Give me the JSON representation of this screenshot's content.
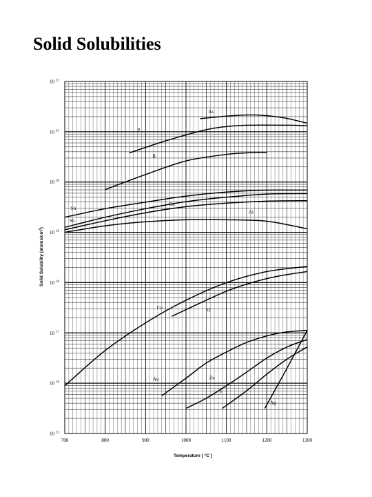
{
  "page": {
    "title": "Solid Solubilities"
  },
  "chart_data": {
    "type": "line",
    "xlabel": "Temperature [ °C ]",
    "ylabel": "Solid Solubility (atoms/cm^3)",
    "xlim": [
      700,
      1300
    ],
    "ylim": [
      15,
      22
    ],
    "y_scale": "log",
    "grid": true,
    "x_ticks": [
      "700",
      "800",
      "900",
      "1000",
      "1100",
      "1200",
      "1300"
    ],
    "y_ticks": [
      {
        "base": "10",
        "exp": "15"
      },
      {
        "base": "10",
        "exp": "16"
      },
      {
        "base": "10",
        "exp": "17"
      },
      {
        "base": "10",
        "exp": "18"
      },
      {
        "base": "10",
        "exp": "19"
      },
      {
        "base": "10",
        "exp": "20"
      },
      {
        "base": "10",
        "exp": "21"
      },
      {
        "base": "10",
        "exp": "22"
      }
    ],
    "series": [
      {
        "name": "As",
        "x": [
          1035,
          1100,
          1140,
          1180,
          1240,
          1300
        ],
        "y": [
          21.26,
          21.31,
          21.33,
          21.33,
          21.28,
          21.17
        ]
      },
      {
        "name": "P",
        "x": [
          860,
          950,
          1050,
          1110,
          1160,
          1250,
          1300
        ],
        "y": [
          20.58,
          20.82,
          21.04,
          21.11,
          21.13,
          21.13,
          21.12
        ]
      },
      {
        "name": "B",
        "x": [
          800,
          900,
          1000,
          1100,
          1150,
          1200
        ],
        "y": [
          19.85,
          20.15,
          20.42,
          20.55,
          20.58,
          20.59
        ]
      },
      {
        "name": "Sn",
        "x": [
          700,
          800,
          900,
          1000,
          1100,
          1200,
          1300
        ],
        "y": [
          19.3,
          19.47,
          19.6,
          19.72,
          19.8,
          19.84,
          19.84
        ]
      },
      {
        "name": "Ga",
        "x": [
          700,
          800,
          900,
          1000,
          1100,
          1200,
          1300
        ],
        "y": [
          19.1,
          19.3,
          19.47,
          19.61,
          19.7,
          19.76,
          19.77
        ]
      },
      {
        "name": "Al",
        "x": [
          700,
          800,
          900,
          1000,
          1100,
          1200,
          1300
        ],
        "y": [
          19.05,
          19.23,
          19.39,
          19.51,
          19.58,
          19.62,
          19.63
        ]
      },
      {
        "name": "Sb",
        "x": [
          700,
          800,
          900,
          1000,
          1100,
          1200,
          1300
        ],
        "y": [
          19.0,
          19.13,
          19.21,
          19.25,
          19.25,
          19.22,
          19.07
        ]
      },
      {
        "name": "Cu",
        "x": [
          700,
          800,
          900,
          1000,
          1100,
          1200,
          1300
        ],
        "y": [
          15.95,
          16.65,
          17.2,
          17.65,
          18.0,
          18.22,
          18.32
        ]
      },
      {
        "name": "O",
        "x": [
          965,
          1050,
          1100,
          1150,
          1200,
          1250,
          1300
        ],
        "y": [
          17.33,
          17.65,
          17.83,
          17.97,
          18.08,
          18.16,
          18.22
        ]
      },
      {
        "name": "Au",
        "x": [
          940,
          1000,
          1050,
          1100,
          1150,
          1200,
          1250,
          1300
        ],
        "y": [
          15.75,
          16.1,
          16.4,
          16.62,
          16.81,
          16.94,
          17.02,
          17.05
        ]
      },
      {
        "name": "Zn",
        "x": [
          1000,
          1050,
          1100,
          1150,
          1200,
          1250,
          1300
        ],
        "y": [
          15.5,
          15.7,
          15.95,
          16.22,
          16.5,
          16.72,
          16.87
        ]
      },
      {
        "name": "S",
        "x": [
          1090,
          1150,
          1200,
          1250,
          1300
        ],
        "y": [
          15.5,
          15.85,
          16.18,
          16.48,
          16.72
        ]
      },
      {
        "name": "Ag",
        "x": [
          1195,
          1250,
          1300
        ],
        "y": [
          15.5,
          16.3,
          17.05
        ]
      }
    ]
  }
}
